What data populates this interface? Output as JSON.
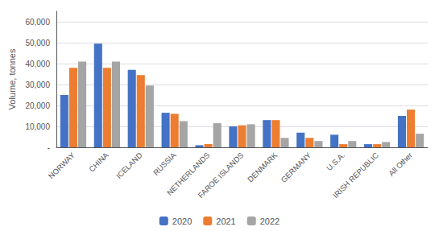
{
  "chart_data": {
    "type": "bar",
    "categories": [
      "NORWAY",
      "CHINA",
      "ICELAND",
      "RUSSIA",
      "NETHERLANDS",
      "FAROE ISLANDS",
      "DENMARK",
      "GERMANY",
      "U.S.A.",
      "IRISH REPUBLIC",
      "All Other"
    ],
    "series": [
      {
        "name": "2020",
        "color": "#4472C4",
        "values": [
          25000,
          49500,
          37000,
          16500,
          1000,
          10000,
          13000,
          7000,
          6000,
          1500,
          15000
        ]
      },
      {
        "name": "2021",
        "color": "#ED7D31",
        "values": [
          38000,
          38000,
          34500,
          16000,
          1500,
          10500,
          13000,
          4500,
          1500,
          1500,
          18000
        ]
      },
      {
        "name": "2022",
        "color": "#A5A5A5",
        "values": [
          41000,
          41000,
          29500,
          12500,
          11500,
          11000,
          4500,
          3000,
          3000,
          2500,
          6500
        ]
      }
    ],
    "ylabel": "Volume, tonnes",
    "ylim": [
      0,
      65000
    ],
    "yticks": [
      {
        "value": 0,
        "label": "-"
      },
      {
        "value": 10000,
        "label": "10,000"
      },
      {
        "value": 20000,
        "label": "20,000"
      },
      {
        "value": 30000,
        "label": "30,000"
      },
      {
        "value": 40000,
        "label": "40,000"
      },
      {
        "value": 50000,
        "label": "50,000"
      },
      {
        "value": 60000,
        "label": "60,000"
      }
    ],
    "grid": true,
    "legend": "bottom"
  }
}
